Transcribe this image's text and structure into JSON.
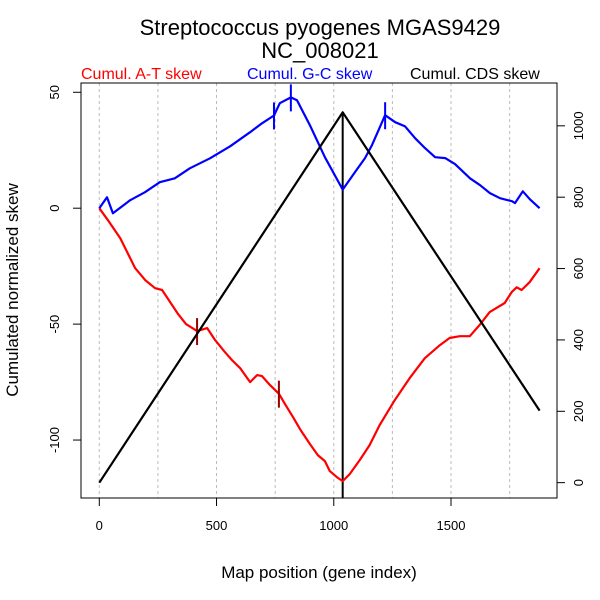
{
  "chart_data": {
    "type": "line",
    "title": "Streptococcus pyogenes MGAS9429",
    "subtitle": "NC_008021",
    "xlabel": "Map position (gene index)",
    "ylabel": "Cumulated normalized skew",
    "xlim": [
      -78,
      1952
    ],
    "ylim_left": [
      -125,
      54
    ],
    "ylim_right": [
      -43,
      1120
    ],
    "xticks": [
      0,
      500,
      1000,
      1500
    ],
    "xtick_labels": [
      "0",
      "500",
      "1000",
      "1500"
    ],
    "xgrid": [
      0,
      250,
      500,
      750,
      1000,
      1250,
      1500,
      1750
    ],
    "yticks_left": [
      50,
      0,
      -50,
      -100
    ],
    "ytick_labels_left": [
      "50",
      "0",
      "-50",
      "-100"
    ],
    "yticks_right": [
      0,
      200,
      400,
      600,
      800,
      1000
    ],
    "ytick_labels_right": [
      "0",
      "200",
      "400",
      "600",
      "800",
      "1000"
    ],
    "grid": "vertical dashed",
    "legend_position": "top",
    "origin_terminus_marker_x": 1038,
    "series": [
      {
        "name": "Cumul. A-T skew",
        "axis": "left",
        "color": "#ff0000",
        "tick_color": "#990000",
        "x": [
          0,
          37,
          89,
          153,
          196,
          238,
          268,
          336,
          370,
          417,
          460,
          494,
          536,
          566,
          601,
          643,
          673,
          694,
          728,
          766,
          792,
          826,
          856,
          898,
          932,
          962,
          983,
          1013,
          1038,
          1068,
          1111,
          1153,
          1196,
          1260,
          1324,
          1388,
          1452,
          1494,
          1537,
          1580,
          1622,
          1665,
          1729,
          1759,
          1780,
          1801,
          1835,
          1878
        ],
        "y": [
          0,
          -5.2,
          -12.9,
          -25.9,
          -31.0,
          -34.5,
          -35.3,
          -45.7,
          -50.0,
          -53.0,
          -51.7,
          -56.9,
          -62.1,
          -65.5,
          -69.0,
          -75.0,
          -72.0,
          -72.4,
          -76.3,
          -80.0,
          -84.5,
          -90.1,
          -95.3,
          -101.7,
          -106.5,
          -109.1,
          -113.4,
          -116.0,
          -117.7,
          -114.7,
          -108.6,
          -102.2,
          -93.5,
          -82.8,
          -73.3,
          -64.7,
          -59.1,
          -56.0,
          -55.2,
          -55.2,
          -50.4,
          -44.8,
          -40.9,
          -36.2,
          -34.1,
          -35.3,
          -31.9,
          -25.9
        ],
        "markers": [
          {
            "x": 417,
            "y": -53.0
          },
          {
            "x": 766,
            "y": -80.0
          }
        ]
      },
      {
        "name": "Cumul. G-C skew",
        "axis": "left",
        "color": "#0000ff",
        "tick_color": "#0000ff",
        "x": [
          0,
          33,
          58,
          131,
          195,
          258,
          322,
          386,
          472,
          558,
          643,
          694,
          745,
          770,
          817,
          843,
          898,
          962,
          1038,
          1090,
          1133,
          1163,
          1219,
          1262,
          1304,
          1347,
          1389,
          1432,
          1475,
          1517,
          1581,
          1624,
          1666,
          1709,
          1760,
          1773,
          1806,
          1836,
          1878
        ],
        "y": [
          0,
          4.7,
          -2.2,
          3.4,
          6.9,
          11.2,
          12.9,
          17.2,
          21.5,
          26.7,
          32.8,
          36.6,
          40.0,
          45.3,
          47.8,
          46.6,
          35.8,
          22.0,
          8.0,
          15.5,
          21.6,
          27.2,
          40.1,
          37.1,
          35.3,
          30.2,
          25.9,
          22.0,
          21.6,
          19.0,
          12.9,
          9.9,
          6.5,
          4.3,
          3.0,
          2.2,
          7.3,
          3.9,
          0
        ],
        "markers": [
          {
            "x": 745,
            "y": 40.0
          },
          {
            "x": 817,
            "y": 47.8
          },
          {
            "x": 1219,
            "y": 40.1
          }
        ]
      },
      {
        "name": "Cumul. CDS skew",
        "axis": "right",
        "color": "#000000",
        "x": [
          0,
          1038,
          1878
        ],
        "y": [
          0,
          1038,
          202
        ]
      }
    ]
  }
}
